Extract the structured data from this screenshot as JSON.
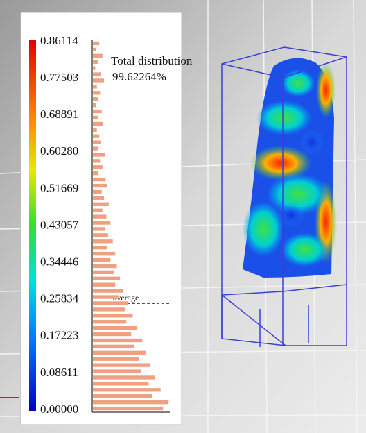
{
  "legend": {
    "labels": [
      "0.86114",
      "0.77503",
      "0.68891",
      "0.60280",
      "0.51669",
      "0.43057",
      "0.34446",
      "0.25834",
      "0.17223",
      "0.08611",
      "0.00000"
    ]
  },
  "histogram": {
    "title": "Total distribution",
    "percent": "99.62264%",
    "average_label": "average",
    "bars": [
      8,
      4,
      12,
      6,
      3,
      10,
      14,
      5,
      9,
      7,
      4,
      11,
      6,
      13,
      5,
      8,
      10,
      6,
      15,
      9,
      12,
      7,
      16,
      18,
      11,
      14,
      20,
      12,
      17,
      22,
      15,
      19,
      25,
      18,
      28,
      22,
      30,
      26,
      34,
      28,
      38,
      32,
      44,
      40,
      50,
      42,
      55,
      48,
      62,
      52,
      66,
      58,
      72,
      60,
      78,
      70,
      85,
      74,
      95,
      88
    ]
  }
}
